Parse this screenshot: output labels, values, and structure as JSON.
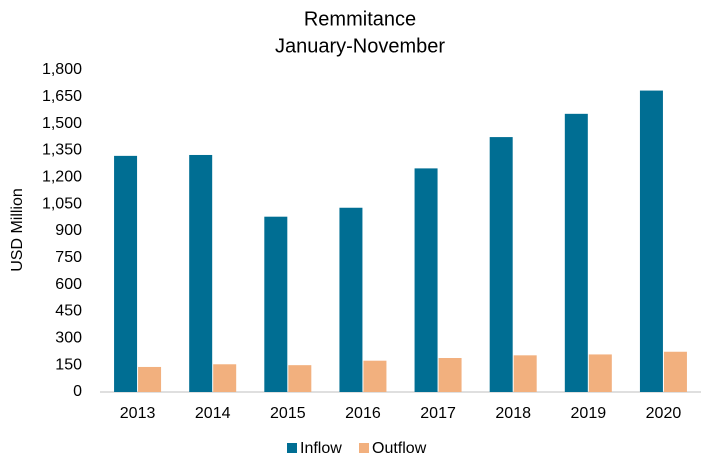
{
  "chart_data": {
    "type": "bar",
    "title": "Remmitance",
    "subtitle": "January-November",
    "y_label": "USD Million",
    "categories": [
      "2013",
      "2014",
      "2015",
      "2016",
      "2017",
      "2018",
      "2019",
      "2020"
    ],
    "series": [
      {
        "name": "Inflow",
        "color": "#006e93",
        "values": [
          1320,
          1325,
          980,
          1030,
          1250,
          1425,
          1555,
          1685
        ]
      },
      {
        "name": "Outflow",
        "color": "#f2b07e",
        "values": [
          140,
          155,
          150,
          175,
          190,
          205,
          210,
          225
        ]
      }
    ],
    "ylim": [
      0,
      1800
    ],
    "yticks": [
      0,
      150,
      300,
      450,
      600,
      750,
      900,
      {
        "value": 1050,
        "label": "1,050"
      },
      {
        "value": 1200,
        "label": "1,200"
      },
      {
        "value": 1350,
        "label": "1,350"
      },
      {
        "value": 1500,
        "label": "1,500"
      },
      {
        "value": 1650,
        "label": "1,650"
      },
      {
        "value": 1800,
        "label": "1,800"
      }
    ],
    "grid": false,
    "legend": "bottom"
  }
}
